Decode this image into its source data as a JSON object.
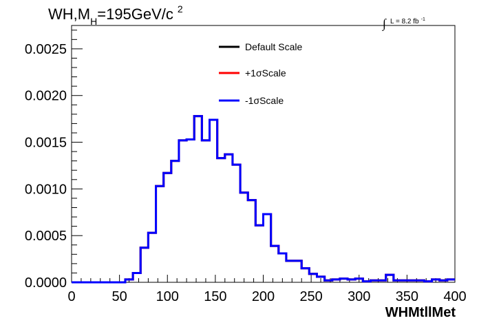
{
  "chart_data": {
    "type": "line",
    "title": {
      "main_prefix": "WH,M",
      "subscript": "H",
      "main_suffix": "=195GeV/c",
      "superscript": "2"
    },
    "luminosity": {
      "integral_symbol": "∫",
      "text": "L = 8.2 fb",
      "superscript": "-1"
    },
    "xlabel": "WHMtllMet",
    "ylabel": "",
    "xlim": [
      0,
      400
    ],
    "ylim": [
      0,
      0.00275
    ],
    "x_ticks": [
      "0",
      "50",
      "100",
      "150",
      "200",
      "250",
      "300",
      "350",
      "400"
    ],
    "y_ticks": [
      "0.0000",
      "0.0005",
      "0.0010",
      "0.0015",
      "0.0020",
      "0.0025"
    ],
    "legend_position": "top-center",
    "bin_width": 8,
    "bin_edges_start": 0,
    "series": [
      {
        "name": "Default Scale",
        "color": "#000000",
        "values": [
          0,
          0,
          0,
          0,
          0,
          0,
          0,
          3e-05,
          0.0001,
          0.00037,
          0.00053,
          0.00103,
          0.00117,
          0.0013,
          0.00152,
          0.00153,
          0.00178,
          0.00152,
          0.00174,
          0.00133,
          0.00137,
          0.00126,
          0.00096,
          0.00088,
          0.00061,
          0.00073,
          0.00039,
          0.00031,
          0.00023,
          0.00023,
          0.00015,
          9e-05,
          6e-05,
          2e-05,
          3e-05,
          4e-05,
          3e-05,
          4e-05,
          1e-05,
          2e-05,
          2e-05,
          8e-05,
          2e-05,
          2e-05,
          2e-05,
          2e-05,
          1e-05,
          3e-05,
          2e-05,
          3e-05
        ]
      },
      {
        "name": "+1σScale",
        "color": "#ff0000",
        "values": [
          0,
          0,
          0,
          0,
          0,
          0,
          0,
          3e-05,
          0.0001,
          0.00037,
          0.00053,
          0.00103,
          0.00117,
          0.0013,
          0.00152,
          0.00153,
          0.00178,
          0.00152,
          0.00174,
          0.00133,
          0.00137,
          0.00126,
          0.00096,
          0.00088,
          0.00061,
          0.00073,
          0.00039,
          0.00031,
          0.00023,
          0.00023,
          0.00015,
          9e-05,
          6e-05,
          2e-05,
          3e-05,
          4e-05,
          3e-05,
          4e-05,
          1e-05,
          2e-05,
          2e-05,
          8e-05,
          2e-05,
          2e-05,
          2e-05,
          2e-05,
          1e-05,
          3e-05,
          2e-05,
          3e-05
        ]
      },
      {
        "name": "-1σScale",
        "color": "#0000ff",
        "values": [
          0,
          0,
          0,
          0,
          0,
          0,
          0,
          3e-05,
          0.0001,
          0.00037,
          0.00053,
          0.00103,
          0.00117,
          0.0013,
          0.00152,
          0.00153,
          0.00178,
          0.00152,
          0.00174,
          0.00133,
          0.00137,
          0.00126,
          0.00096,
          0.00088,
          0.00061,
          0.00073,
          0.00039,
          0.00031,
          0.00023,
          0.00023,
          0.00015,
          9e-05,
          6e-05,
          2e-05,
          3e-05,
          4e-05,
          3e-05,
          4e-05,
          1e-05,
          2e-05,
          2e-05,
          8e-05,
          2e-05,
          2e-05,
          2e-05,
          2e-05,
          1e-05,
          3e-05,
          2e-05,
          3e-05
        ]
      }
    ]
  }
}
